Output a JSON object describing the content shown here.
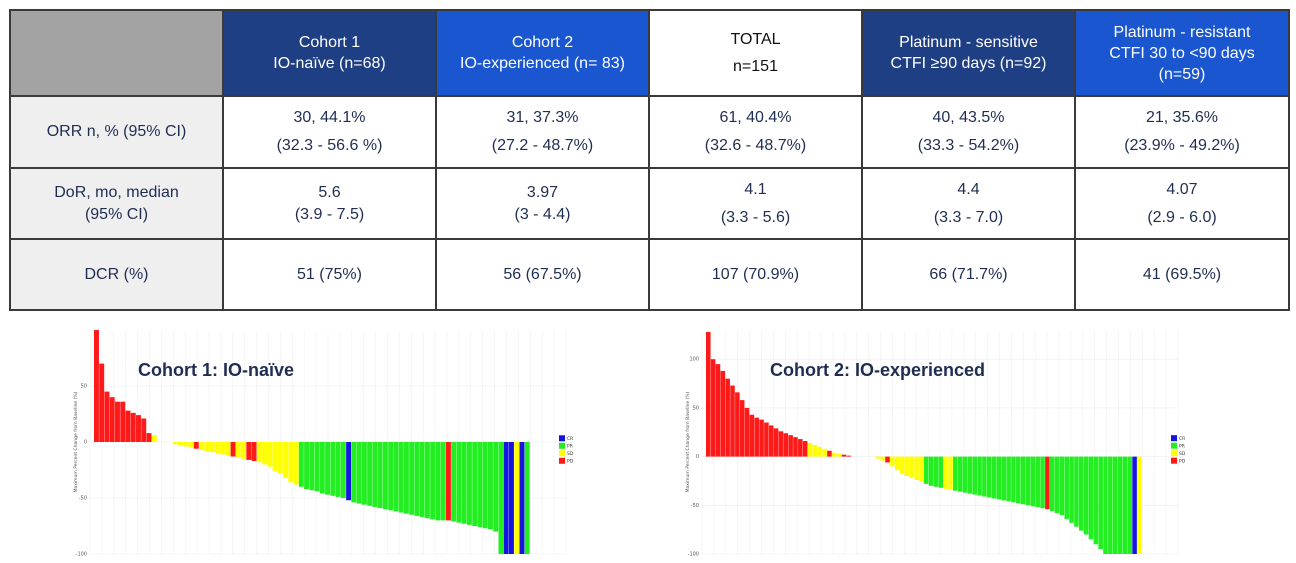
{
  "table": {
    "headers": [
      {
        "lines": [
          "Cohort 1",
          "IO-naïve (n=68)"
        ]
      },
      {
        "lines": [
          "Cohort 2",
          "IO-experienced (n= 83)"
        ]
      },
      {
        "lines": [
          "TOTAL",
          "n=151"
        ]
      },
      {
        "lines": [
          "Platinum - sensitive",
          "CTFI ≥90 days (n=92)"
        ]
      },
      {
        "lines": [
          "Platinum - resistant",
          "CTFI 30 to <90 days",
          "(n=59)"
        ]
      }
    ],
    "rows": [
      {
        "label": [
          "ORR n, % (95% CI)"
        ],
        "cells": [
          [
            "30, 44.1%",
            "(32.3 - 56.6 %)"
          ],
          [
            "31, 37.3%",
            "(27.2 - 48.7%)"
          ],
          [
            "61, 40.4%",
            "(32.6 - 48.7%)"
          ],
          [
            "40, 43.5%",
            "(33.3 - 54.2%)"
          ],
          [
            "21, 35.6%",
            "(23.9% - 49.2%)"
          ]
        ]
      },
      {
        "label": [
          "DoR, mo, median",
          "(95% CI)"
        ],
        "cells": [
          [
            "5.6",
            "(3.9 - 7.5)"
          ],
          [
            "3.97",
            "(3 - 4.4)"
          ],
          [
            "4.1",
            "(3.3 - 5.6)"
          ],
          [
            "4.4",
            "(3.3 - 7.0)"
          ],
          [
            "4.07",
            "(2.9 - 6.0)"
          ]
        ]
      },
      {
        "label": [
          "DCR (%)"
        ],
        "cells": [
          [
            "51 (75%)"
          ],
          [
            "56 (67.5%)"
          ],
          [
            "107 (70.9%)"
          ],
          [
            "66 (71.7%)"
          ],
          [
            "41 (69.5%)"
          ]
        ]
      }
    ]
  },
  "chart_data": [
    {
      "type": "bar",
      "title": "Cohort 1: IO-naïve",
      "ylabel": "Maximum Percent Change from Baseline (%)",
      "ylim": [
        -100,
        100
      ],
      "yticks": [
        "50",
        "0",
        "-50",
        "-100"
      ],
      "legend": {
        "placement": "right",
        "labels": [
          "CR",
          "PR",
          "SD",
          "PD"
        ]
      },
      "colors": {
        "CR": "#1515e0",
        "PR": "#22ee22",
        "SD": "#ffff00",
        "PD": "#ff1a1a"
      },
      "values": [
        100,
        70,
        45,
        40,
        36,
        36,
        28,
        26,
        24,
        21,
        8,
        6,
        0,
        0,
        0,
        -2,
        -3,
        -4,
        -5,
        -6,
        -7,
        -8,
        -9,
        -10,
        -11,
        -12,
        -13,
        -14,
        -15,
        -16,
        -17,
        -18,
        -20,
        -22,
        -26,
        -28,
        -32,
        -36,
        -38,
        -40,
        -42,
        -43,
        -44,
        -46,
        -47,
        -48,
        -49,
        -50,
        -52,
        -54,
        -55,
        -56,
        -57,
        -58,
        -59,
        -60,
        -61,
        -62,
        -63,
        -64,
        -65,
        -66,
        -67,
        -68,
        -69,
        -70,
        -70,
        -70,
        -71,
        -72,
        -73,
        -74,
        -75,
        -76,
        -77,
        -78,
        -80,
        -100,
        -100,
        -100,
        -100,
        -100,
        -100
      ],
      "response": [
        "PD",
        "PD",
        "PD",
        "PD",
        "PD",
        "PD",
        "PD",
        "PD",
        "PD",
        "PD",
        "PD",
        "SD",
        "SD",
        "SD",
        "SD",
        "SD",
        "SD",
        "SD",
        "SD",
        "PD",
        "SD",
        "SD",
        "SD",
        "SD",
        "SD",
        "SD",
        "PD",
        "SD",
        "SD",
        "PD",
        "PD",
        "SD",
        "SD",
        "SD",
        "SD",
        "SD",
        "SD",
        "SD",
        "SD",
        "PR",
        "PR",
        "PR",
        "PR",
        "PR",
        "PR",
        "PR",
        "PR",
        "PR",
        "CR",
        "PR",
        "PR",
        "PR",
        "PR",
        "PR",
        "PR",
        "PR",
        "PR",
        "PR",
        "PR",
        "PR",
        "PR",
        "PR",
        "PR",
        "PR",
        "PR",
        "PR",
        "PR",
        "PD",
        "PR",
        "PR",
        "PR",
        "PR",
        "PR",
        "PR",
        "PR",
        "PR",
        "PR",
        "PR",
        "CR",
        "CR",
        "SD",
        "CR",
        "PR"
      ]
    },
    {
      "type": "bar",
      "title": "Cohort 2: IO-experienced",
      "ylabel": "Maximum Percent Change from Baseline (%)",
      "ylim": [
        -100,
        130
      ],
      "yticks": [
        "100",
        "50",
        "0",
        "-50",
        "-100"
      ],
      "legend": {
        "placement": "right",
        "labels": [
          "CR",
          "PR",
          "SD",
          "PD"
        ]
      },
      "colors": {
        "CR": "#1515e0",
        "PR": "#22ee22",
        "SD": "#ffff00",
        "PD": "#ff1a1a"
      },
      "values": [
        128,
        100,
        95,
        88,
        80,
        73,
        66,
        58,
        50,
        43,
        40,
        38,
        35,
        32,
        29,
        26,
        24,
        22,
        20,
        18,
        16,
        14,
        12,
        10,
        8,
        6,
        4,
        3,
        2,
        1,
        0,
        0,
        0,
        0,
        0,
        -2,
        -4,
        -6,
        -10,
        -14,
        -18,
        -20,
        -22,
        -24,
        -26,
        -28,
        -30,
        -31,
        -32,
        -33,
        -34,
        -35,
        -36,
        -37,
        -38,
        -39,
        -40,
        -41,
        -42,
        -43,
        -44,
        -45,
        -46,
        -47,
        -48,
        -49,
        -50,
        -51,
        -52,
        -53,
        -54,
        -56,
        -58,
        -60,
        -64,
        -68,
        -72,
        -76,
        -80,
        -85,
        -90,
        -95,
        -100,
        -100,
        -100,
        -100,
        -100,
        -100,
        -100,
        -100
      ],
      "response": [
        "PD",
        "PD",
        "PD",
        "PD",
        "PD",
        "PD",
        "PD",
        "PD",
        "PD",
        "PD",
        "PD",
        "PD",
        "PD",
        "PD",
        "PD",
        "PD",
        "PD",
        "PD",
        "PD",
        "PD",
        "PD",
        "SD",
        "SD",
        "SD",
        "SD",
        "PD",
        "SD",
        "SD",
        "PD",
        "PD",
        "SD",
        "SD",
        "SD",
        "SD",
        "SD",
        "SD",
        "SD",
        "PD",
        "SD",
        "SD",
        "SD",
        "SD",
        "SD",
        "SD",
        "SD",
        "PR",
        "PR",
        "PR",
        "PR",
        "SD",
        "SD",
        "PR",
        "PR",
        "PR",
        "PR",
        "PR",
        "PR",
        "PR",
        "PR",
        "PR",
        "PR",
        "PR",
        "PR",
        "PR",
        "PR",
        "PR",
        "PR",
        "PR",
        "PR",
        "PR",
        "PD",
        "PR",
        "PR",
        "PR",
        "PR",
        "PR",
        "PR",
        "PR",
        "PR",
        "PR",
        "PR",
        "PR",
        "PR",
        "PR",
        "PR",
        "PR",
        "PR",
        "PR",
        "CR",
        "SD"
      ]
    }
  ]
}
